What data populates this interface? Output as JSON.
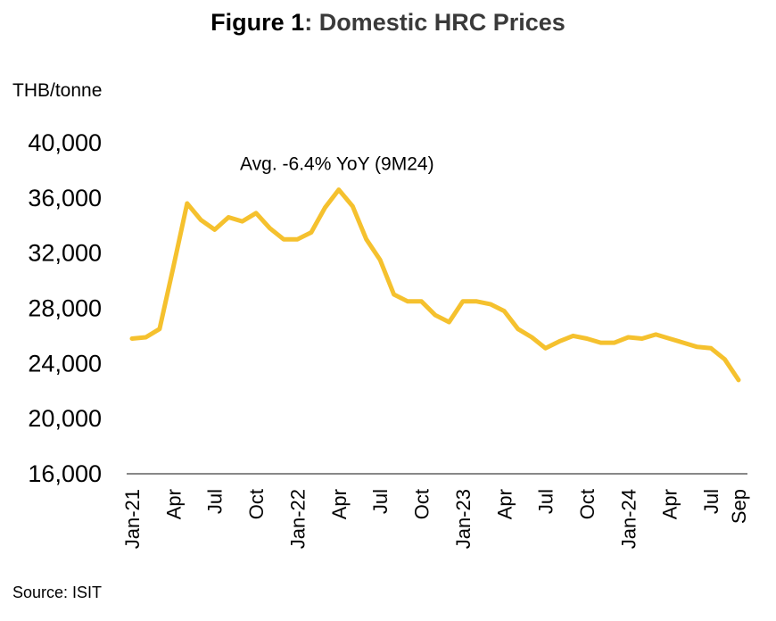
{
  "title_bold": "Figure 1",
  "title_rest": ": Domestic HRC Prices",
  "unit_label": "THB/tonne",
  "source": "Source: ISIT",
  "chart_data": {
    "type": "line",
    "title": "Figure 1: Domestic HRC Prices",
    "ylabel": "THB/tonne",
    "ylim": [
      16000,
      40000
    ],
    "yticks": [
      16000,
      20000,
      24000,
      28000,
      32000,
      36000,
      40000
    ],
    "ytick_labels": [
      "16,000",
      "20,000",
      "24,000",
      "28,000",
      "32,000",
      "36,000",
      "40,000"
    ],
    "x": [
      "2021-01",
      "2021-02",
      "2021-03",
      "2021-04",
      "2021-05",
      "2021-06",
      "2021-07",
      "2021-08",
      "2021-09",
      "2021-10",
      "2021-11",
      "2021-12",
      "2022-01",
      "2022-02",
      "2022-03",
      "2022-04",
      "2022-05",
      "2022-06",
      "2022-07",
      "2022-08",
      "2022-09",
      "2022-10",
      "2022-11",
      "2022-12",
      "2023-01",
      "2023-02",
      "2023-03",
      "2023-04",
      "2023-05",
      "2023-06",
      "2023-07",
      "2023-08",
      "2023-09",
      "2023-10",
      "2023-11",
      "2023-12",
      "2024-01",
      "2024-02",
      "2024-03",
      "2024-04",
      "2024-05",
      "2024-06",
      "2024-07",
      "2024-08",
      "2024-09"
    ],
    "xtick_labels": [
      {
        "x": "2021-01",
        "label": "Jan-21"
      },
      {
        "x": "2021-04",
        "label": "Apr"
      },
      {
        "x": "2021-07",
        "label": "Jul"
      },
      {
        "x": "2021-10",
        "label": "Oct"
      },
      {
        "x": "2022-01",
        "label": "Jan-22"
      },
      {
        "x": "2022-04",
        "label": "Apr"
      },
      {
        "x": "2022-07",
        "label": "Jul"
      },
      {
        "x": "2022-10",
        "label": "Oct"
      },
      {
        "x": "2023-01",
        "label": "Jan-23"
      },
      {
        "x": "2023-04",
        "label": "Apr"
      },
      {
        "x": "2023-07",
        "label": "Jul"
      },
      {
        "x": "2023-10",
        "label": "Oct"
      },
      {
        "x": "2024-01",
        "label": "Jan-24"
      },
      {
        "x": "2024-04",
        "label": "Apr"
      },
      {
        "x": "2024-07",
        "label": "Jul"
      },
      {
        "x": "2024-09",
        "label": "Sep"
      }
    ],
    "series": [
      {
        "color": "#F5C12E",
        "values": [
          25800,
          25900,
          26500,
          31000,
          35600,
          34400,
          33700,
          34600,
          34300,
          34900,
          33800,
          33000,
          33000,
          33500,
          35300,
          36600,
          35400,
          33000,
          31500,
          29000,
          28500,
          28500,
          27500,
          27000,
          28500,
          28500,
          28300,
          27800,
          26500,
          25900,
          25100,
          25600,
          26000,
          25800,
          25500,
          25500,
          25900,
          25800,
          26100,
          25800,
          25500,
          25200,
          25100,
          24300,
          22800
        ]
      }
    ],
    "annotations": [
      {
        "text": "Avg. -6.4% YoY (9M24)",
        "x": "2022-04",
        "y": 36600
      }
    ],
    "grid": false,
    "legend": "none"
  }
}
